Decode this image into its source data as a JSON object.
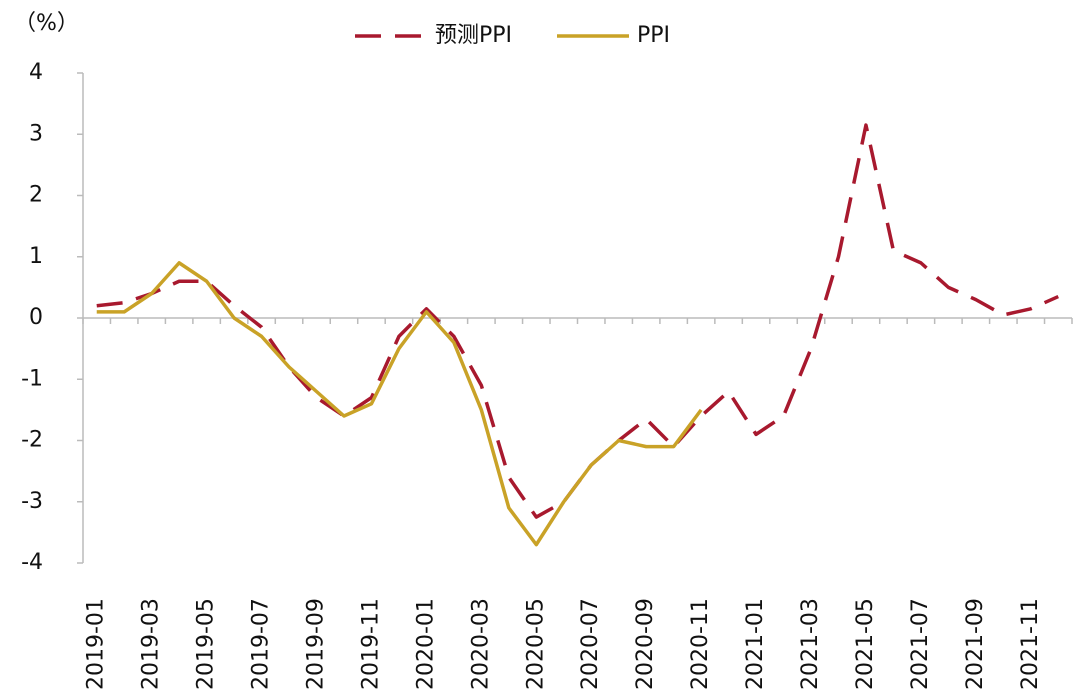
{
  "chart_data": {
    "type": "line",
    "y_label": "（%）",
    "categories": [
      "2019-01",
      null,
      "2019-03",
      null,
      "2019-05",
      null,
      "2019-07",
      null,
      "2019-09",
      null,
      "2019-11",
      null,
      "2020-01",
      null,
      "2020-03",
      null,
      "2020-05",
      null,
      "2020-07",
      null,
      "2020-09",
      null,
      "2020-11",
      null,
      "2021-01",
      null,
      "2021-03",
      null,
      "2021-05",
      null,
      "2021-07",
      null,
      "2021-09",
      null,
      "2021-11",
      null
    ],
    "series": [
      {
        "name": "预测PPI",
        "color": "#a8192e",
        "dashed": true,
        "values": [
          0.2,
          0.25,
          0.4,
          0.6,
          0.6,
          0.2,
          -0.15,
          -0.8,
          -1.3,
          -1.6,
          -1.3,
          -0.3,
          0.15,
          -0.3,
          -1.1,
          -2.6,
          -3.25,
          -3.0,
          -2.4,
          -2.0,
          -1.65,
          -2.1,
          -1.6,
          -1.2,
          -1.9,
          -1.6,
          -0.5,
          1.0,
          3.15,
          1.1,
          0.9,
          0.5,
          0.3,
          0.05,
          0.15,
          0.35
        ]
      },
      {
        "name": "PPI",
        "color": "#c9a227",
        "dashed": false,
        "values": [
          0.1,
          0.1,
          0.4,
          0.9,
          0.6,
          0.0,
          -0.3,
          -0.8,
          -1.2,
          -1.6,
          -1.4,
          -0.5,
          0.1,
          -0.4,
          -1.5,
          -3.1,
          -3.7,
          -3.0,
          -2.4,
          -2.0,
          -2.1,
          -2.1,
          -1.5,
          null,
          null,
          null,
          null,
          null,
          null,
          null,
          null,
          null,
          null,
          null,
          null,
          null
        ]
      }
    ],
    "ylim": [
      -4,
      4
    ],
    "yticks": [
      -4,
      -3,
      -2,
      -1,
      0,
      1,
      2,
      3,
      4
    ]
  }
}
